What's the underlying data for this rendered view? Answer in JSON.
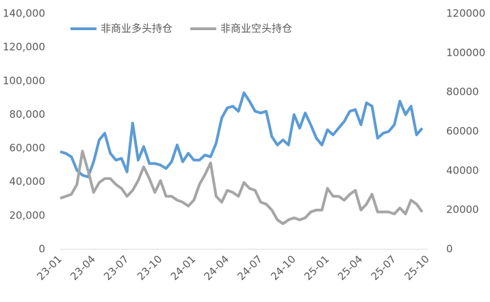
{
  "chart_data": {
    "type": "line",
    "categories": [
      "23-01",
      null,
      null,
      null,
      null,
      null,
      "23-04",
      null,
      null,
      null,
      null,
      null,
      "23-07",
      null,
      null,
      null,
      null,
      null,
      "23-10",
      null,
      null,
      null,
      null,
      null,
      "24-01",
      null,
      null,
      null,
      null,
      null,
      "24-04",
      null,
      null,
      null,
      null,
      null,
      "24-07",
      null,
      null,
      null,
      null,
      null,
      "24-10",
      null,
      null,
      null,
      null,
      null,
      "25-01",
      null,
      null,
      null,
      null,
      null,
      "25-04",
      null,
      null,
      null,
      null,
      null,
      "25-07",
      null,
      null,
      null,
      null,
      null,
      "25-10"
    ],
    "series": [
      {
        "name": "非商业多头持仓",
        "color": "#5b9bd5",
        "values": [
          58000,
          57000,
          55000,
          47000,
          44000,
          43000,
          52000,
          65000,
          69000,
          57000,
          53000,
          54000,
          46000,
          75000,
          53000,
          61000,
          51000,
          51000,
          50000,
          48000,
          52000,
          62000,
          52000,
          57000,
          53000,
          53000,
          56000,
          55000,
          63000,
          78000,
          84000,
          85000,
          82000,
          93000,
          88000,
          82000,
          81000,
          82000,
          67000,
          62000,
          65000,
          62000,
          80000,
          72000,
          81000,
          74000,
          66000,
          62000,
          71000,
          68000,
          72000,
          76000,
          82000,
          83000,
          74000,
          87000,
          85000,
          66000,
          69000,
          70000,
          74000,
          88000,
          80000,
          85000,
          68000,
          72000,
          null
        ]
      },
      {
        "name": "非商业空头持仓",
        "color": "#a5a5a5",
        "axis": "y2",
        "values": [
          26000,
          27000,
          28000,
          33000,
          50000,
          40000,
          29000,
          34000,
          36000,
          36000,
          33000,
          31000,
          27000,
          30000,
          35000,
          42000,
          36000,
          29000,
          35000,
          27000,
          27000,
          25000,
          24000,
          22000,
          25000,
          33000,
          38000,
          44000,
          27000,
          24000,
          30000,
          29000,
          27000,
          34000,
          31000,
          30000,
          24000,
          23000,
          20000,
          15000,
          13000,
          15000,
          16000,
          15000,
          16000,
          19000,
          20000,
          20000,
          31000,
          27000,
          27000,
          25000,
          28000,
          30000,
          20000,
          23000,
          28000,
          19000,
          19000,
          19000,
          18000,
          21000,
          18000,
          25000,
          23000,
          19000,
          null
        ]
      }
    ],
    "ylim": [
      0,
      140000
    ],
    "yticks": [
      0,
      {
        "value": 20000,
        "label": "20,000"
      },
      {
        "value": 40000,
        "label": "40,000"
      },
      {
        "value": 60000,
        "label": "60,000"
      },
      {
        "value": 80000,
        "label": "80,000"
      },
      {
        "value": 100000,
        "label": "100,000"
      },
      {
        "value": 120000,
        "label": "120,000"
      },
      {
        "value": 140000,
        "label": "140,000"
      }
    ],
    "y2lim": [
      0,
      120000
    ],
    "y2ticks": [
      0,
      20000,
      40000,
      60000,
      80000,
      100000,
      120000
    ],
    "grid": false,
    "legend": "top-left"
  }
}
